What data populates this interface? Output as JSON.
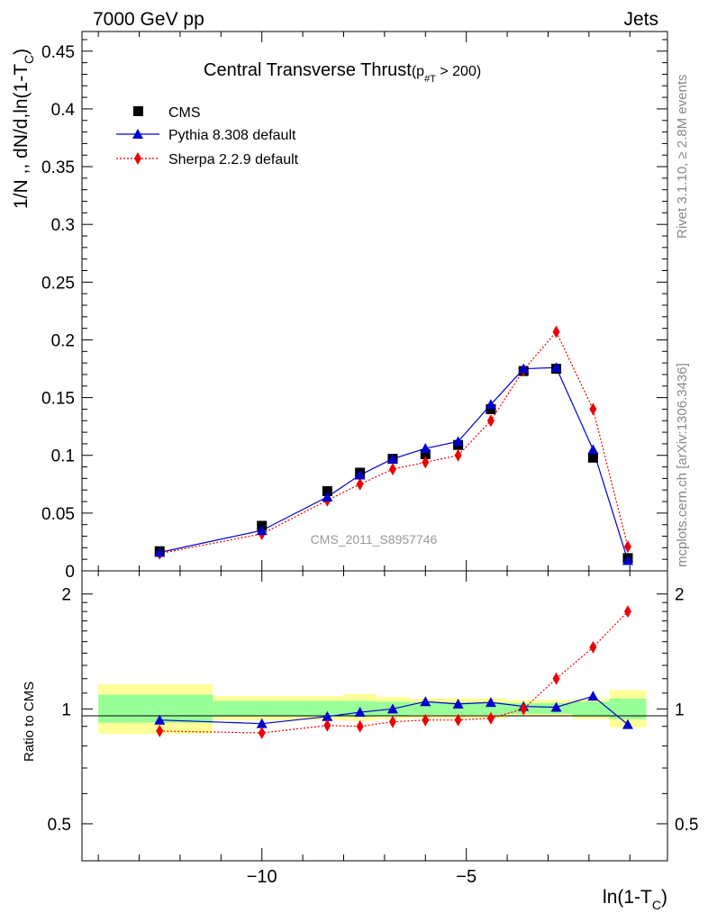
{
  "header": {
    "left": "7000 GeV pp",
    "right": "Jets"
  },
  "side_labels": {
    "rivet": "Rivet 3.1.10, ≥ 2.8M events",
    "mcplots": "mcplots.cern.ch [arXiv:1306.3436]"
  },
  "watermark": "CMS_2011_S8957746",
  "colors": {
    "cms": "#000000",
    "pythia": "#0000cc",
    "sherpa": "#ee0000",
    "band_inner": "#99ff99",
    "band_outer": "#ffff99"
  },
  "chart_data": [
    {
      "type": "scatter",
      "title": "Central Transverse Thrust",
      "title_cut": {
        "prefix": "(p",
        "sub": "#T",
        "suffix": " > 200)"
      },
      "ylabel": "1/N ,, dN/d,ln(1-T",
      "ylabel_sub": "C",
      "ylabel_end": ")",
      "xlim": [
        -14.4,
        -0.08
      ],
      "ylim": [
        0,
        0.467
      ],
      "y_ticks": [
        0,
        0.05,
        0.1,
        0.15,
        0.2,
        0.25,
        0.3,
        0.35,
        0.4,
        0.45
      ],
      "y_tick_labels": [
        "0",
        "0.05",
        "0.1",
        "0.15",
        "0.2",
        "0.25",
        "0.3",
        "0.35",
        "0.4",
        "0.45"
      ],
      "legend_position": "top-left",
      "x": [
        -12.5,
        -10.0,
        -8.4,
        -7.6,
        -6.8,
        -6.0,
        -5.2,
        -4.4,
        -3.6,
        -2.8,
        -1.9,
        -1.05
      ],
      "series": [
        {
          "name": "CMS",
          "marker": "square",
          "values": [
            0.017,
            0.039,
            0.069,
            0.085,
            0.097,
            0.101,
            0.109,
            0.14,
            0.173,
            0.175,
            0.098,
            0.011
          ]
        },
        {
          "name": "Pythia 8.308 default",
          "marker": "triangle",
          "values": [
            0.016,
            0.035,
            0.064,
            0.083,
            0.097,
            0.106,
            0.112,
            0.144,
            0.175,
            0.176,
            0.105,
            0.009
          ]
        },
        {
          "name": "Sherpa 2.2.9 default",
          "marker": "diamond",
          "values": [
            0.015,
            0.032,
            0.061,
            0.075,
            0.088,
            0.094,
            0.1,
            0.13,
            0.174,
            0.207,
            0.14,
            0.021
          ]
        }
      ]
    },
    {
      "type": "line",
      "ylabel": "Ratio to CMS",
      "xlabel": "ln(1-T",
      "xlabel_sub": "C",
      "xlabel_end": ")",
      "scale": "log",
      "xlim": [
        -14.4,
        -0.08
      ],
      "ylim": [
        0.4,
        2.3
      ],
      "y_ticks": [
        0.5,
        1,
        2
      ],
      "y_tick_labels": [
        "0.5",
        "1",
        "2"
      ],
      "x_ticks": [
        -10,
        -5
      ],
      "x_tick_labels": [
        "−10",
        "−5"
      ],
      "x": [
        -12.5,
        -10.0,
        -8.4,
        -7.6,
        -6.8,
        -6.0,
        -5.2,
        -4.4,
        -3.6,
        -2.8,
        -1.9,
        -1.05
      ],
      "series": [
        {
          "name": "Pythia 8.308 default",
          "values": [
            0.935,
            0.915,
            0.955,
            0.98,
            1.0,
            1.045,
            1.03,
            1.04,
            1.015,
            1.01,
            1.08,
            0.91
          ]
        },
        {
          "name": "Sherpa 2.2.9 default",
          "values": [
            0.875,
            0.865,
            0.905,
            0.9,
            0.925,
            0.935,
            0.935,
            0.945,
            1.0,
            1.2,
            1.45,
            1.8
          ]
        }
      ],
      "uncertainty_bands": [
        {
          "x_range": [
            -14.0,
            -11.2
          ],
          "inner": [
            0.92,
            1.09
          ],
          "outer": [
            0.86,
            1.16
          ]
        },
        {
          "x_range": [
            -11.2,
            -8.0
          ],
          "inner": [
            0.955,
            1.05
          ],
          "outer": [
            0.935,
            1.08
          ]
        },
        {
          "x_range": [
            -8.0,
            -7.2
          ],
          "inner": [
            0.955,
            1.05
          ],
          "outer": [
            0.93,
            1.095
          ]
        },
        {
          "x_range": [
            -7.2,
            -6.4
          ],
          "inner": [
            0.96,
            1.045
          ],
          "outer": [
            0.94,
            1.075
          ]
        },
        {
          "x_range": [
            -6.4,
            -4.0
          ],
          "inner": [
            0.965,
            1.04
          ],
          "outer": [
            0.945,
            1.065
          ]
        },
        {
          "x_range": [
            -4.0,
            -2.4
          ],
          "inner": [
            0.97,
            1.035
          ],
          "outer": [
            0.955,
            1.055
          ]
        },
        {
          "x_range": [
            -2.4,
            -1.5
          ],
          "inner": [
            0.955,
            1.045
          ],
          "outer": [
            0.94,
            1.06
          ]
        },
        {
          "x_range": [
            -1.5,
            -0.6
          ],
          "inner": [
            0.94,
            1.065
          ],
          "outer": [
            0.895,
            1.12
          ]
        }
      ]
    }
  ]
}
